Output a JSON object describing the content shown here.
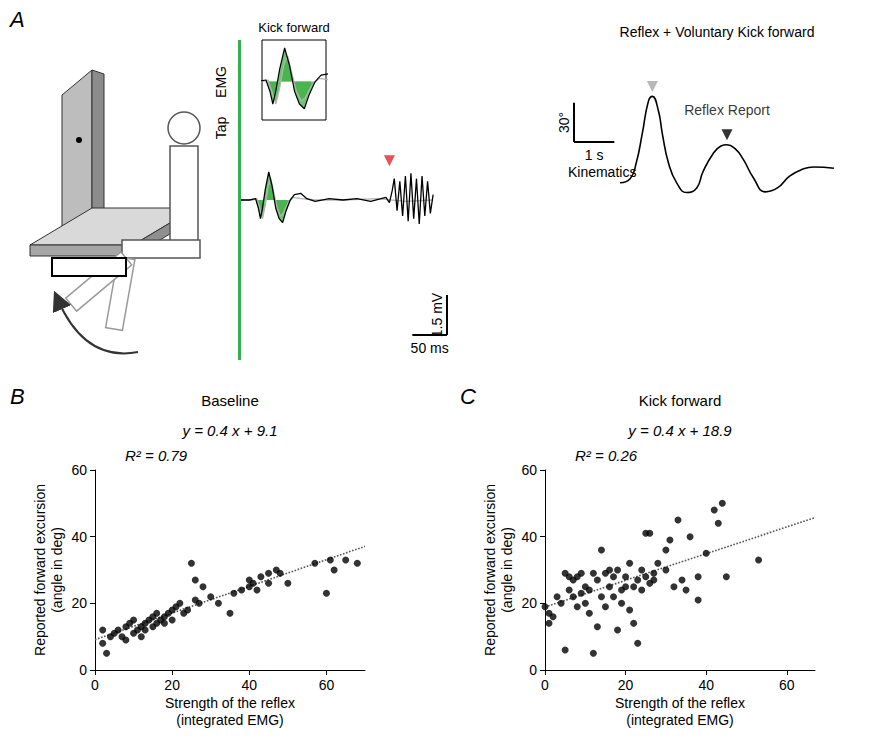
{
  "chart_data": [
    {
      "type": "line",
      "panel": "A",
      "annotations": [
        "EMG"
      ],
      "tap": {
        "x": 0,
        "label": "Tap",
        "color": "#2db34a"
      },
      "xlim": [
        -10,
        300
      ],
      "ylim": [
        -6,
        6
      ],
      "tick_labels": false,
      "grid": false,
      "series": [
        {
          "color": "#b3b3b3",
          "x": [
            0,
            20,
            26,
            30,
            34,
            38,
            42,
            46,
            50,
            55,
            60,
            64,
            70,
            78,
            90,
            110,
            150,
            200,
            240,
            280
          ],
          "values": [
            0,
            0,
            0.05,
            -0.3,
            -0.7,
            -0.2,
            0.5,
            0.8,
            0.3,
            -0.3,
            -0.6,
            -0.5,
            -0.15,
            0.1,
            0.05,
            0,
            0,
            0.05,
            -0.05,
            0
          ]
        },
        {
          "color": "#000000",
          "x": [
            0,
            15,
            24,
            28,
            31,
            34,
            38,
            43,
            48,
            53,
            58,
            63,
            68,
            74,
            80,
            89,
            98,
            110,
            130,
            150,
            170,
            190,
            205,
            212,
            217,
            221,
            224,
            228,
            232,
            236,
            240,
            244,
            248,
            252,
            256,
            260,
            264,
            268,
            272,
            276,
            280
          ],
          "values": [
            0,
            0,
            0.05,
            -0.3,
            -0.7,
            -0.3,
            0.4,
            1.05,
            0.5,
            -0.3,
            -0.7,
            -0.85,
            -0.4,
            0,
            0.2,
            0.25,
            0.05,
            -0.05,
            0.05,
            0,
            0.05,
            -0.05,
            0.05,
            0.1,
            -0.1,
            0.35,
            0.8,
            -0.4,
            0.7,
            -0.6,
            0.9,
            -0.8,
            1.0,
            -0.7,
            0.8,
            -0.9,
            0.9,
            -0.6,
            0.7,
            -0.5,
            0.2
          ]
        }
      ],
      "integration_window": [
        24,
        74
      ],
      "integration_color": "#3cb043",
      "markers": [
        {
          "x": 217,
          "y": 1.1,
          "color": "#e3262b",
          "marker": "triangle"
        }
      ],
      "scale_bars": [
        {
          "axis": "y",
          "value": 1.5,
          "label": "1.5 mV"
        },
        {
          "axis": "x",
          "value": 50,
          "label": "50 ms"
        }
      ],
      "inset": {
        "title": "Kick forward",
        "xlim": [
          20,
          85
        ],
        "ylim": [
          -1.2,
          1.3
        ]
      }
    },
    {
      "type": "line",
      "panel": "A",
      "title": "Reflex + Voluntary Kick forward",
      "annotations": [
        "Kinematics"
      ],
      "xlim": [
        -0.2,
        5.5
      ],
      "ylim": [
        -40,
        90
      ],
      "tick_labels": false,
      "grid": false,
      "color": "#000000",
      "x": [
        0,
        0.25,
        0.4,
        0.55,
        0.7,
        0.8,
        0.95,
        1.05,
        1.2,
        1.4,
        1.65,
        1.9,
        2.05,
        2.3,
        2.5,
        2.65,
        2.85,
        3.05,
        3.3,
        3.6,
        3.9,
        4.2,
        4.5,
        4.8,
        5.3
      ],
      "values": [
        0,
        3,
        15,
        37.5,
        62,
        66,
        55,
        37,
        15,
        0,
        -7.5,
        -4,
        8,
        22,
        28,
        29,
        26,
        18,
        4,
        -7,
        -4,
        5,
        10,
        12,
        11
      ],
      "markers": [
        {
          "x": 0.8,
          "y": 66,
          "color": "#a6a6a6",
          "marker": "triangle"
        },
        {
          "x": 2.65,
          "y": 29,
          "color": "#000000",
          "marker": "triangle",
          "label": "Reflex Report"
        }
      ],
      "scale_bars": [
        {
          "axis": "y",
          "value": 30,
          "label": "30°"
        },
        {
          "axis": "x",
          "value": 1,
          "label": "1 s"
        }
      ]
    },
    {
      "type": "scatter",
      "panel": "B",
      "title": "Baseline",
      "annotations": [
        "y = 0.4 x + 9.1",
        "R² = 0.79"
      ],
      "xlabel": "Strength of the reflex (integrated EMG)",
      "ylabel": "Reported forward excursion (angle in deg)",
      "xlim": [
        0,
        70
      ],
      "xticks": [
        0,
        20,
        40,
        60
      ],
      "ylim": [
        0,
        60
      ],
      "yticks": [
        0,
        20,
        40,
        60
      ],
      "grid": false,
      "color": "#000000",
      "marker": "circle",
      "x": [
        2,
        2,
        3,
        4,
        5,
        6,
        7,
        8,
        8,
        9,
        10,
        10,
        11,
        12,
        12,
        13,
        13,
        14,
        15,
        15,
        16,
        16,
        17,
        18,
        18,
        19,
        20,
        20,
        21,
        22,
        23,
        24,
        25,
        26,
        26,
        27,
        28,
        30,
        32,
        35,
        36,
        38,
        40,
        40,
        41,
        42,
        43,
        45,
        45,
        47,
        48,
        50,
        57,
        60,
        61,
        62,
        65,
        68
      ],
      "values": [
        12,
        8,
        5,
        10,
        11,
        12,
        10,
        9,
        13,
        14,
        11,
        15,
        12,
        13,
        10,
        14,
        12,
        15,
        13,
        16,
        14,
        17,
        15,
        16,
        14,
        17,
        18,
        15,
        19,
        20,
        17,
        18,
        32,
        27,
        21,
        20,
        25,
        22,
        20,
        17,
        23,
        24,
        25,
        27,
        26,
        24,
        28,
        29,
        26,
        30,
        29,
        26,
        32,
        23,
        33,
        30,
        33,
        32
      ],
      "fit": {
        "slope": 0.4,
        "intercept": 9.1,
        "line_style": "dotted",
        "color": "#555555"
      }
    },
    {
      "type": "scatter",
      "panel": "C",
      "title": "Kick forward",
      "annotations": [
        "y = 0.4 x + 18.9",
        "R² = 0.26"
      ],
      "xlabel": "Strength of the reflex (integrated EMG)",
      "ylabel": "Reported forward excursion (angle in deg)",
      "xlim": [
        0,
        67
      ],
      "xticks": [
        0,
        20,
        40,
        60
      ],
      "ylim": [
        0,
        60
      ],
      "yticks": [
        0,
        20,
        40,
        60
      ],
      "grid": false,
      "color": "#000000",
      "marker": "circle",
      "x": [
        0,
        1,
        1,
        2,
        3,
        4,
        5,
        5,
        6,
        6,
        7,
        7,
        8,
        8,
        9,
        9,
        10,
        10,
        11,
        11,
        12,
        12,
        13,
        13,
        14,
        14,
        15,
        15,
        16,
        16,
        17,
        17,
        18,
        18,
        19,
        19,
        20,
        20,
        21,
        21,
        22,
        22,
        23,
        23,
        24,
        24,
        25,
        25,
        26,
        26,
        27,
        27,
        28,
        30,
        30,
        31,
        32,
        33,
        34,
        35,
        36,
        38,
        38,
        40,
        42,
        43,
        44,
        45,
        53
      ],
      "values": [
        19,
        14,
        17,
        16,
        22,
        20,
        6,
        29,
        28,
        24,
        27,
        22,
        28,
        19,
        23,
        29,
        20,
        25,
        17,
        24,
        5,
        29,
        27,
        13,
        36,
        22,
        29,
        19,
        25,
        30,
        22,
        28,
        30,
        12,
        24,
        20,
        25,
        28,
        32,
        18,
        25,
        14,
        27,
        8,
        24,
        30,
        28,
        41,
        26,
        41,
        29,
        27,
        32,
        36,
        30,
        39,
        25,
        45,
        27,
        24,
        40,
        21,
        28,
        35,
        48,
        44,
        50,
        28,
        33
      ],
      "fit": {
        "slope": 0.4,
        "intercept": 18.9,
        "line_style": "dotted",
        "color": "#555555"
      }
    }
  ]
}
